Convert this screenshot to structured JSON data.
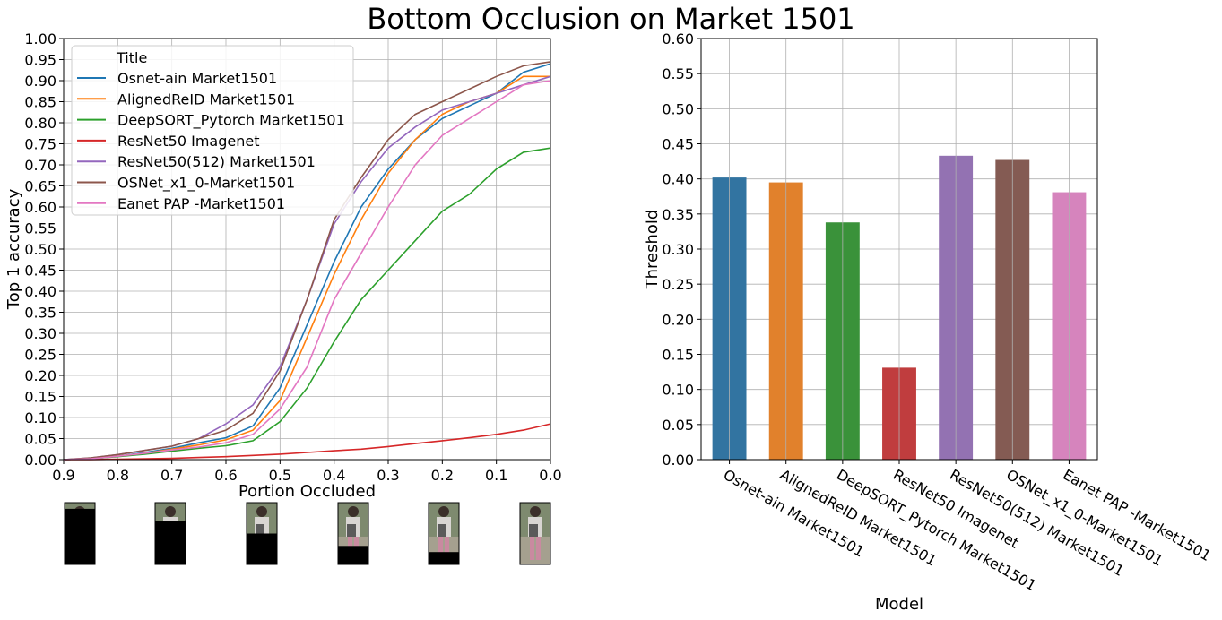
{
  "title": "Bottom Occlusion on Market 1501",
  "colors": {
    "osnet_ain": "#1f77b4",
    "alignedreid": "#ff7f0e",
    "deepsort": "#2ca02c",
    "resnet50_imagenet": "#d62728",
    "resnet50_512": "#9467bd",
    "osnet_x1_0": "#8c564b",
    "eanet_pap": "#e377c2",
    "grid": "#b0b0b0",
    "occluder": "#000000"
  },
  "chart_data": [
    {
      "type": "line",
      "xlabel": "Portion Occluded",
      "ylabel": "Top 1 accuracy",
      "xlim": [
        0.9,
        0.0
      ],
      "ylim": [
        0.0,
        1.0
      ],
      "x_ticks": [
        "0.9",
        "0.8",
        "0.7",
        "0.6",
        "0.5",
        "0.4",
        "0.3",
        "0.2",
        "0.1",
        "0.0"
      ],
      "y_ticks": [
        "0.00",
        "0.05",
        "0.10",
        "0.15",
        "0.20",
        "0.25",
        "0.30",
        "0.35",
        "0.40",
        "0.45",
        "0.50",
        "0.55",
        "0.60",
        "0.65",
        "0.70",
        "0.75",
        "0.80",
        "0.85",
        "0.90",
        "0.95",
        "1.00"
      ],
      "grid": true,
      "legend_title": "Title",
      "legend_position": "upper-left",
      "x": [
        0.9,
        0.85,
        0.8,
        0.75,
        0.7,
        0.65,
        0.6,
        0.55,
        0.5,
        0.45,
        0.4,
        0.35,
        0.3,
        0.25,
        0.2,
        0.15,
        0.1,
        0.05,
        0.0
      ],
      "series": [
        {
          "name": "Osnet-ain Market1501",
          "color_key": "osnet_ain",
          "values": [
            0.0,
            0.002,
            0.008,
            0.017,
            0.027,
            0.04,
            0.052,
            0.08,
            0.17,
            0.32,
            0.47,
            0.6,
            0.69,
            0.76,
            0.81,
            0.84,
            0.87,
            0.92,
            0.94
          ]
        },
        {
          "name": "AlignedReID Market1501",
          "color_key": "alignedreid",
          "values": [
            0.0,
            0.002,
            0.008,
            0.015,
            0.025,
            0.035,
            0.047,
            0.07,
            0.14,
            0.29,
            0.44,
            0.57,
            0.68,
            0.76,
            0.82,
            0.85,
            0.87,
            0.91,
            0.91
          ]
        },
        {
          "name": "DeepSORT_Pytorch Market1501",
          "color_key": "deepsort",
          "values": [
            0.0,
            0.002,
            0.007,
            0.013,
            0.02,
            0.027,
            0.033,
            0.045,
            0.09,
            0.17,
            0.28,
            0.38,
            0.45,
            0.52,
            0.59,
            0.63,
            0.69,
            0.73,
            0.74
          ]
        },
        {
          "name": "ResNet50 Imagenet",
          "color_key": "resnet50_imagenet",
          "values": [
            0.0,
            0.0,
            0.001,
            0.002,
            0.003,
            0.005,
            0.007,
            0.01,
            0.013,
            0.017,
            0.021,
            0.025,
            0.031,
            0.038,
            0.045,
            0.052,
            0.06,
            0.07,
            0.085
          ]
        },
        {
          "name": "ResNet50(512) Market1501",
          "color_key": "resnet50_512",
          "values": [
            0.0,
            0.004,
            0.012,
            0.022,
            0.032,
            0.05,
            0.085,
            0.13,
            0.22,
            0.38,
            0.56,
            0.66,
            0.74,
            0.79,
            0.83,
            0.85,
            0.87,
            0.89,
            0.91
          ]
        },
        {
          "name": "OSNet_x1_0-Market1501",
          "color_key": "osnet_x1_0",
          "values": [
            0.0,
            0.004,
            0.012,
            0.022,
            0.032,
            0.05,
            0.07,
            0.11,
            0.21,
            0.38,
            0.57,
            0.67,
            0.76,
            0.82,
            0.85,
            0.88,
            0.91,
            0.935,
            0.945
          ]
        },
        {
          "name": "Eanet PAP -Market1501",
          "color_key": "eanet_pap",
          "values": [
            0.0,
            0.002,
            0.008,
            0.015,
            0.023,
            0.03,
            0.04,
            0.06,
            0.12,
            0.22,
            0.38,
            0.49,
            0.6,
            0.7,
            0.77,
            0.81,
            0.85,
            0.89,
            0.9
          ]
        }
      ]
    },
    {
      "type": "bar",
      "xlabel": "Model",
      "ylabel": "Threshold",
      "ylim": [
        0.0,
        0.6
      ],
      "y_ticks": [
        "0.00",
        "0.05",
        "0.10",
        "0.15",
        "0.20",
        "0.25",
        "0.30",
        "0.35",
        "0.40",
        "0.45",
        "0.50",
        "0.55",
        "0.60"
      ],
      "grid": true,
      "categories": [
        "Osnet-ain Market1501",
        "AlignedReID Market1501",
        "DeepSORT_Pytorch Market1501",
        "ResNet50 Imagenet",
        "ResNet50(512) Market1501",
        "OSNet_x1_0-Market1501",
        "Eanet PAP -Market1501"
      ],
      "values": [
        0.402,
        0.395,
        0.338,
        0.131,
        0.433,
        0.427,
        0.381
      ],
      "bar_colors": [
        "#3274a1",
        "#e1812c",
        "#3a923a",
        "#c03d3e",
        "#9372b2",
        "#845b53",
        "#d684bd"
      ]
    }
  ],
  "thumbnails": {
    "description_visible": false,
    "occlusion_fractions": [
      0.9,
      0.7,
      0.5,
      0.3,
      0.2,
      0.0
    ]
  }
}
